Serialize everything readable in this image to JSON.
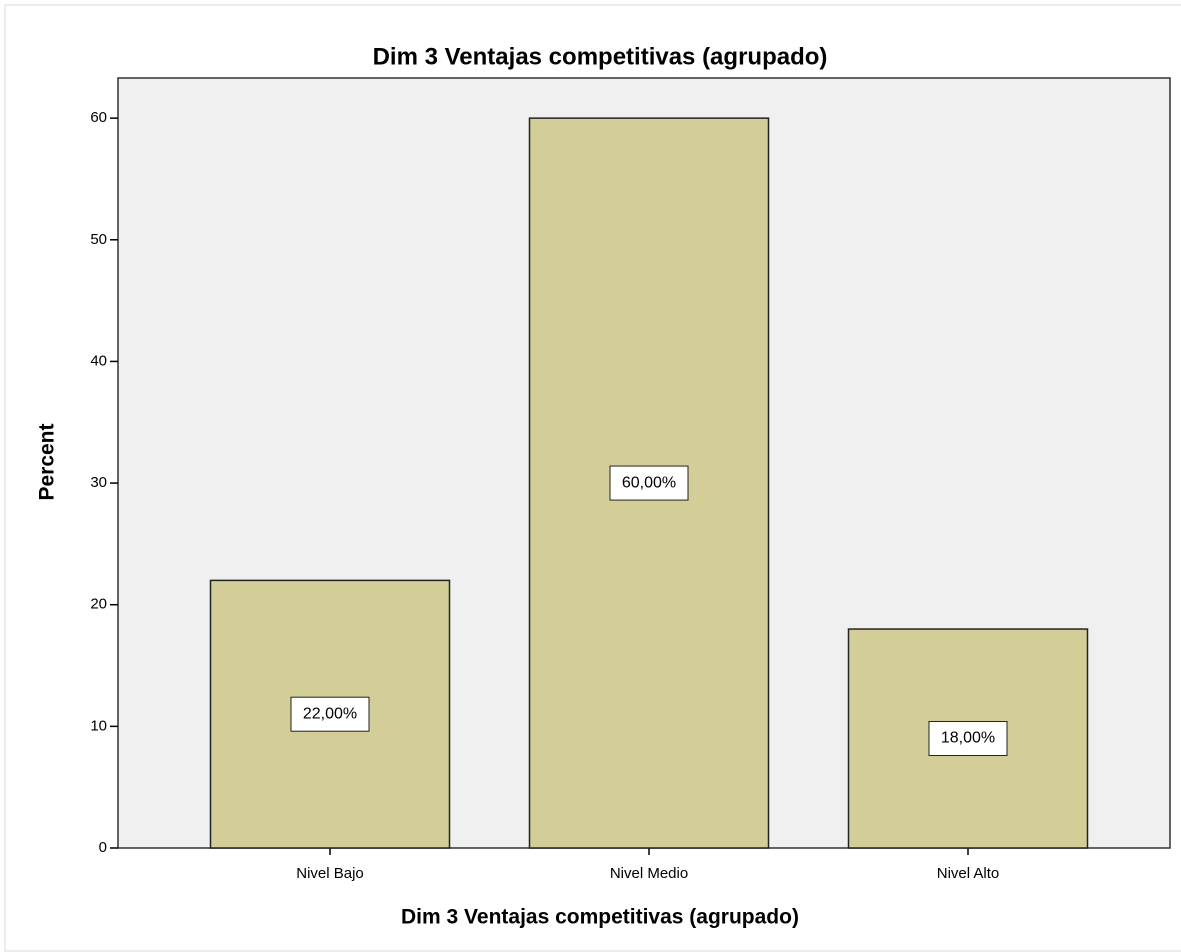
{
  "chart_data": {
    "type": "bar",
    "title": "Dim 3 Ventajas competitivas (agrupado)",
    "x_label": "Dim 3 Ventajas competitivas (agrupado)",
    "y_label": "Percent",
    "categories": [
      "Nivel Bajo",
      "Nivel Medio",
      "Nivel Alto"
    ],
    "values": [
      22,
      60,
      18
    ],
    "value_labels": [
      "22,00%",
      "60,00%",
      "18,00%"
    ],
    "color": "#d3ce97",
    "ylim": [
      0,
      63.3
    ],
    "yticks": [
      0,
      10,
      20,
      30,
      40,
      50,
      60
    ],
    "grid": false
  }
}
